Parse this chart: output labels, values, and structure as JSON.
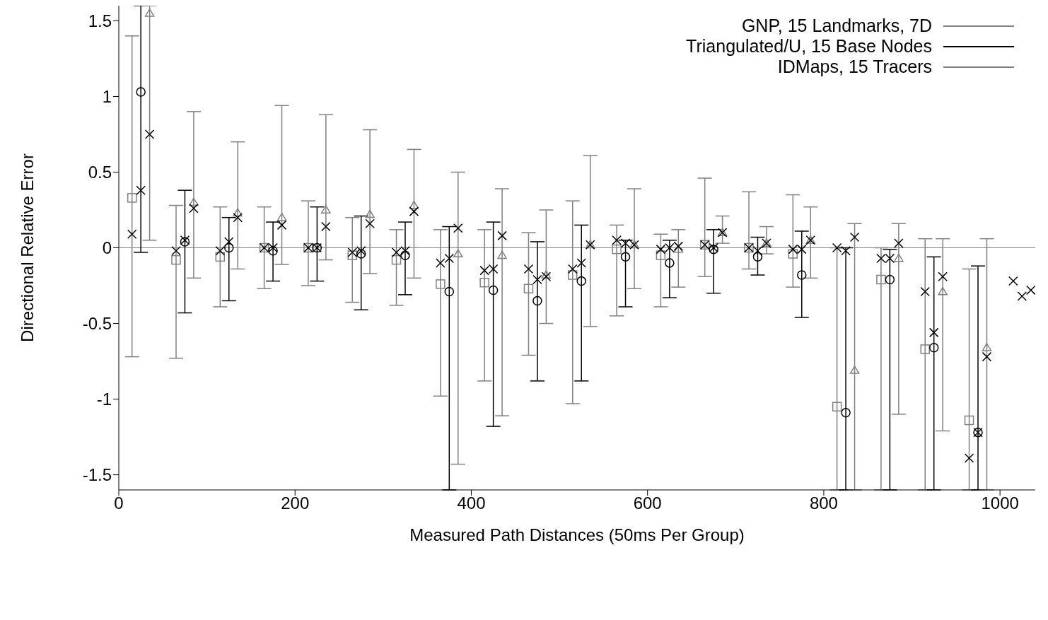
{
  "chart_data": {
    "type": "scatter",
    "xlabel": "Measured Path Distances (50ms Per Group)",
    "ylabel": "Directional Relative Error",
    "xlim": [
      0,
      1040
    ],
    "xticks": [
      0,
      200,
      400,
      600,
      800,
      1000
    ],
    "ylim": [
      -1.6,
      1.6
    ],
    "yticks": [
      -1.5,
      -1,
      -0.5,
      0,
      0.5,
      1,
      1.5
    ],
    "grid": false,
    "legend": "top right",
    "ref_lines": [
      {
        "axis": "y",
        "value": 0,
        "color": "#808080"
      }
    ],
    "series": [
      {
        "name": "GNP, 15 Landmarks, 7D",
        "color": "#808080",
        "marker": "square",
        "x": [
          15,
          65,
          115,
          165,
          215,
          265,
          315,
          365,
          415,
          465,
          515,
          565,
          615,
          665,
          715,
          765,
          815,
          865,
          915,
          965
        ],
        "values": [
          0.33,
          -0.08,
          -0.06,
          0,
          0,
          -0.05,
          -0.08,
          -0.24,
          -0.23,
          -0.27,
          -0.18,
          -0.01,
          -0.05,
          0.02,
          0,
          -0.04,
          -1.05,
          -0.21,
          -0.67,
          -1.14
        ],
        "errors": [
          [
            -0.72,
            1.4
          ],
          [
            -0.73,
            0.28
          ],
          [
            -0.39,
            0.27
          ],
          [
            -0.27,
            0.27
          ],
          [
            -0.25,
            0.31
          ],
          [
            -0.36,
            0.2
          ],
          [
            -0.38,
            0.12
          ],
          [
            -0.98,
            0.12
          ],
          [
            -0.88,
            0.12
          ],
          [
            -0.71,
            0.1
          ],
          [
            -1.03,
            0.31
          ],
          [
            -0.45,
            0.15
          ],
          [
            -0.39,
            0.09
          ],
          [
            -0.19,
            0.46
          ],
          [
            -0.14,
            0.37
          ],
          [
            -0.26,
            0.35
          ],
          [
            -1.6,
            0
          ],
          [
            -1.6,
            0
          ],
          [
            -1.6,
            0.06
          ],
          [
            -1.6,
            -0.14
          ]
        ]
      },
      {
        "name": "Triangulated/U, 15 Base Nodes",
        "color": "#000000",
        "marker": "circle",
        "x": [
          25,
          75,
          125,
          175,
          225,
          275,
          325,
          375,
          425,
          475,
          525,
          575,
          625,
          675,
          725,
          775,
          825,
          875,
          925,
          975
        ],
        "values": [
          1.03,
          0.04,
          0,
          -0.02,
          0,
          -0.04,
          -0.05,
          -0.29,
          -0.28,
          -0.35,
          -0.22,
          -0.06,
          -0.1,
          -0.01,
          -0.06,
          -0.18,
          -1.09,
          -0.21,
          -0.66,
          -1.22
        ],
        "errors": [
          [
            -0.03,
            1.6
          ],
          [
            -0.43,
            0.38
          ],
          [
            -0.35,
            0.2
          ],
          [
            -0.22,
            0.17
          ],
          [
            -0.22,
            0.27
          ],
          [
            -0.41,
            0.21
          ],
          [
            -0.31,
            0.17
          ],
          [
            -1.6,
            0.14
          ],
          [
            -1.18,
            0.17
          ],
          [
            -0.88,
            0.04
          ],
          [
            -0.88,
            0.15
          ],
          [
            -0.39,
            0.05
          ],
          [
            -0.33,
            0.05
          ],
          [
            -0.3,
            0.12
          ],
          [
            -0.18,
            0.07
          ],
          [
            -0.46,
            0.11
          ],
          [
            -1.6,
            0
          ],
          [
            -1.6,
            -0.01
          ],
          [
            -1.6,
            -0.06
          ],
          [
            -1.6,
            -0.12
          ]
        ]
      },
      {
        "name": "IDMaps, 15 Tracers",
        "color": "#808080",
        "marker": "triangle",
        "x": [
          35,
          85,
          135,
          185,
          235,
          285,
          335,
          385,
          435,
          485,
          535,
          585,
          635,
          685,
          735,
          785,
          835,
          885,
          935,
          985
        ],
        "values": [
          1.55,
          0.3,
          0.23,
          0.2,
          0.25,
          0.22,
          0.28,
          -0.04,
          -0.05,
          -0.18,
          0.02,
          0.02,
          -0.01,
          0.1,
          0.03,
          0.05,
          -0.81,
          -0.07,
          -0.29,
          -0.66
        ],
        "errors": [
          [
            0.05,
            1.6
          ],
          [
            -0.2,
            0.9
          ],
          [
            -0.14,
            0.7
          ],
          [
            -0.11,
            0.94
          ],
          [
            -0.08,
            0.88
          ],
          [
            -0.17,
            0.78
          ],
          [
            -0.2,
            0.65
          ],
          [
            -1.43,
            0.5
          ],
          [
            -1.11,
            0.39
          ],
          [
            -0.5,
            0.25
          ],
          [
            -0.52,
            0.61
          ],
          [
            -0.27,
            0.39
          ],
          [
            -0.26,
            0.12
          ],
          [
            0.03,
            0.21
          ],
          [
            -0.04,
            0.14
          ],
          [
            -0.2,
            0.27
          ],
          [
            -1.6,
            0.16
          ],
          [
            -1.1,
            0.16
          ],
          [
            -1.21,
            0.06
          ],
          [
            -1.6,
            0.06
          ]
        ]
      },
      {
        "color": "#000000",
        "marker": "cross",
        "x": [
          15,
          25,
          35,
          65,
          75,
          85,
          115,
          125,
          135,
          165,
          175,
          185,
          215,
          225,
          235,
          265,
          275,
          285,
          315,
          325,
          335,
          365,
          375,
          385,
          415,
          425,
          435,
          465,
          475,
          485,
          515,
          525,
          535,
          565,
          575,
          585,
          615,
          625,
          635,
          665,
          675,
          685,
          715,
          725,
          735,
          765,
          775,
          785,
          815,
          825,
          835,
          865,
          875,
          885,
          915,
          925,
          935,
          965,
          975,
          985,
          1015,
          1025,
          1035
        ],
        "values": [
          0.09,
          0.38,
          0.75,
          -0.02,
          0.05,
          0.26,
          -0.02,
          0.04,
          0.2,
          0,
          0,
          0.15,
          0,
          0,
          0.14,
          -0.03,
          -0.02,
          0.16,
          -0.03,
          -0.02,
          0.24,
          -0.1,
          -0.07,
          0.13,
          -0.15,
          -0.14,
          0.08,
          -0.14,
          -0.21,
          -0.19,
          -0.14,
          -0.1,
          0.02,
          0.05,
          0.03,
          0.02,
          -0.01,
          0,
          0.01,
          0.02,
          0,
          0.1,
          0,
          -0.02,
          0.03,
          -0.01,
          -0.01,
          0.05,
          0,
          -0.02,
          0.07,
          -0.07,
          -0.07,
          0.03,
          -0.29,
          -0.56,
          -0.19,
          -1.39,
          -1.22,
          -0.72,
          -0.22,
          -0.32,
          -0.28
        ]
      }
    ]
  }
}
